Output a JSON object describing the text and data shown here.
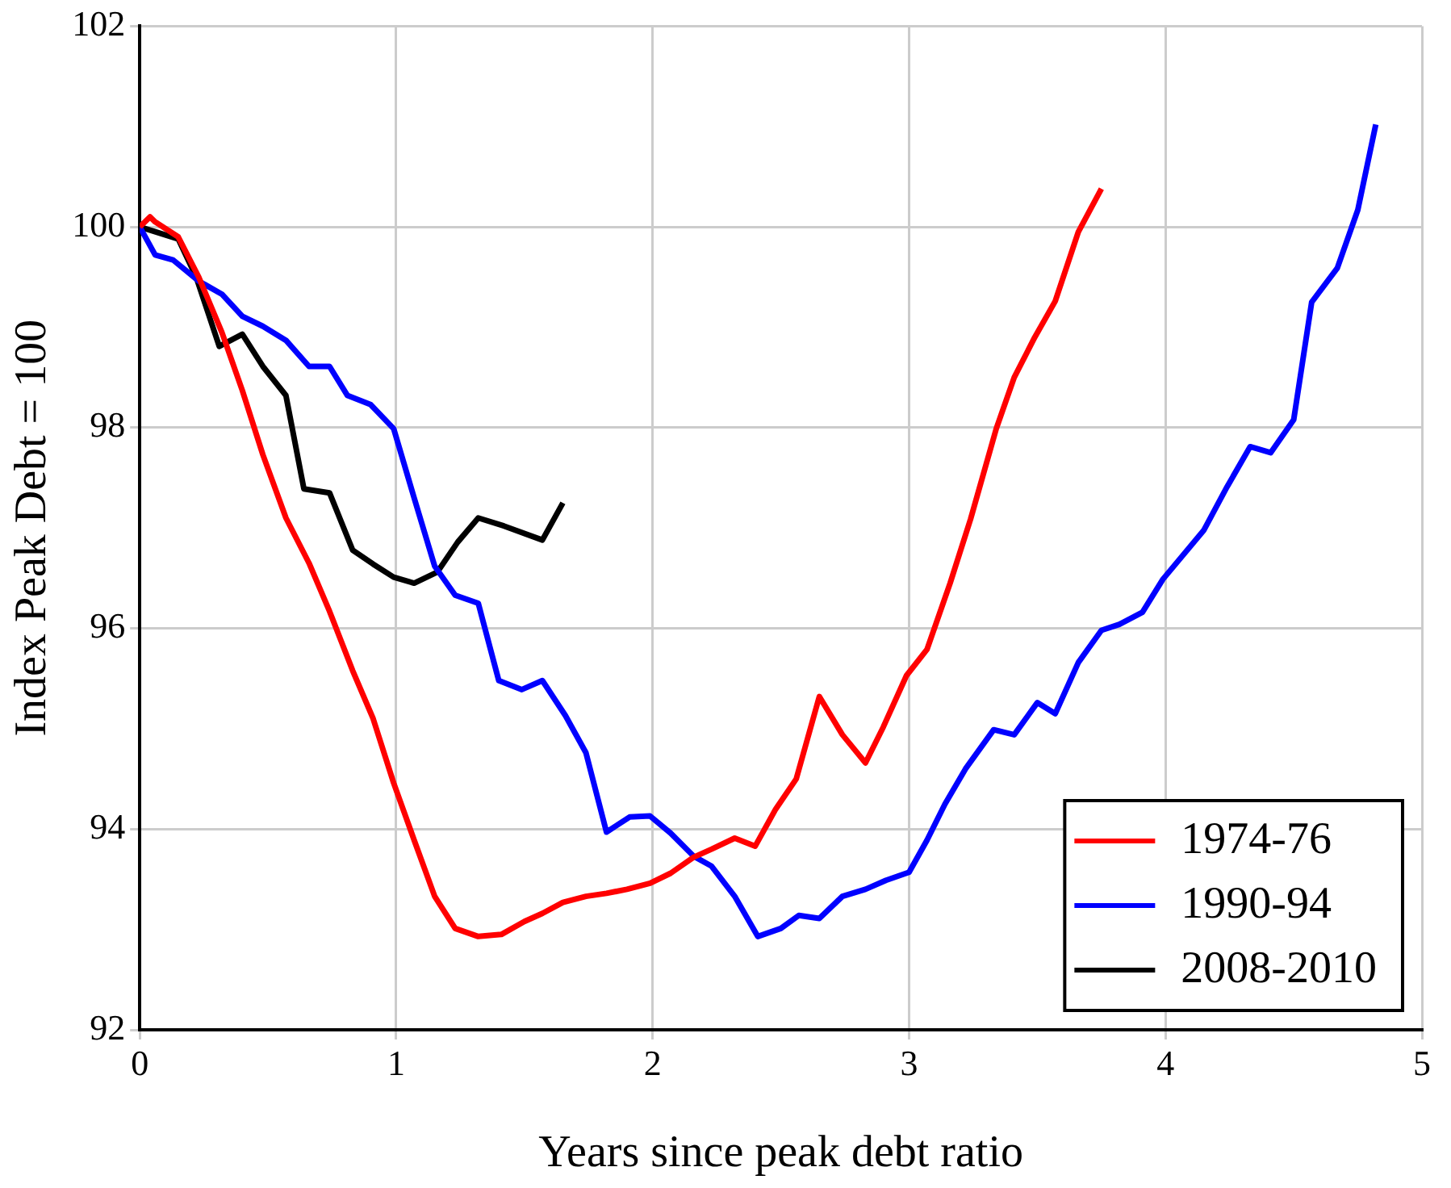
{
  "chart_data": {
    "type": "line",
    "xlabel": "Years since peak debt ratio",
    "ylabel": "Index Peak Debt = 100",
    "xlim": [
      0,
      5
    ],
    "xticks": [
      0,
      1,
      2,
      3,
      4,
      5
    ],
    "ylim": [
      92,
      102
    ],
    "yticks": [
      92,
      94,
      96,
      98,
      100,
      102
    ],
    "grid": true,
    "legend": "bottom right",
    "line_style": "solid",
    "series": [
      {
        "name": "1974-76",
        "color": "#ff0000",
        "x": [
          0,
          0.04,
          0.06,
          0.15,
          0.23,
          0.32,
          0.4,
          0.48,
          0.57,
          0.66,
          0.74,
          0.83,
          0.91,
          0.99,
          1.07,
          1.15,
          1.23,
          1.32,
          1.41,
          1.5,
          1.57,
          1.65,
          1.74,
          1.82,
          1.9,
          1.99,
          2.07,
          2.16,
          2.23,
          2.32,
          2.4,
          2.48,
          2.56,
          2.65,
          2.74,
          2.83,
          2.9,
          2.99,
          3.07,
          3.16,
          3.24,
          3.34,
          3.41,
          3.49,
          3.57,
          3.66,
          3.75
        ],
        "values": [
          100.0,
          100.1,
          100.05,
          99.9,
          99.5,
          98.95,
          98.37,
          97.73,
          97.1,
          96.65,
          96.17,
          95.58,
          95.1,
          94.46,
          93.89,
          93.33,
          93.01,
          92.93,
          92.95,
          93.08,
          93.16,
          93.27,
          93.33,
          93.36,
          93.4,
          93.46,
          93.56,
          93.72,
          93.8,
          93.91,
          93.83,
          94.2,
          94.5,
          95.32,
          94.94,
          94.66,
          95.02,
          95.53,
          95.79,
          96.45,
          97.09,
          97.99,
          98.5,
          98.9,
          99.26,
          99.95,
          100.38
        ]
      },
      {
        "name": "1990-94",
        "color": "#0000ff",
        "x": [
          0,
          0.06,
          0.13,
          0.23,
          0.32,
          0.4,
          0.48,
          0.57,
          0.66,
          0.74,
          0.81,
          0.9,
          0.99,
          1.07,
          1.15,
          1.23,
          1.32,
          1.4,
          1.49,
          1.57,
          1.66,
          1.74,
          1.82,
          1.91,
          1.99,
          2.07,
          2.16,
          2.23,
          2.32,
          2.41,
          2.5,
          2.57,
          2.65,
          2.74,
          2.83,
          2.91,
          3.0,
          3.07,
          3.14,
          3.22,
          3.33,
          3.41,
          3.5,
          3.57,
          3.66,
          3.75,
          3.82,
          3.91,
          3.99,
          4.15,
          4.24,
          4.33,
          4.41,
          4.5,
          4.57,
          4.67,
          4.75,
          4.82
        ],
        "values": [
          100.0,
          99.72,
          99.67,
          99.46,
          99.33,
          99.11,
          99.01,
          98.87,
          98.61,
          98.61,
          98.32,
          98.23,
          97.99,
          97.3,
          96.62,
          96.33,
          96.25,
          95.48,
          95.39,
          95.48,
          95.13,
          94.76,
          93.97,
          94.12,
          94.13,
          93.96,
          93.73,
          93.63,
          93.33,
          92.93,
          93.01,
          93.14,
          93.11,
          93.33,
          93.4,
          93.49,
          93.57,
          93.89,
          94.25,
          94.6,
          94.99,
          94.94,
          95.26,
          95.15,
          95.66,
          95.98,
          96.04,
          96.16,
          96.49,
          96.98,
          97.41,
          97.81,
          97.75,
          98.08,
          99.25,
          99.59,
          100.17,
          101.02
        ]
      },
      {
        "name": "2008-2010",
        "color": "#000000",
        "x": [
          0,
          0.15,
          0.22,
          0.31,
          0.4,
          0.48,
          0.57,
          0.64,
          0.74,
          0.83,
          0.91,
          0.99,
          1.07,
          1.16,
          1.24,
          1.32,
          1.42,
          1.57,
          1.65
        ],
        "values": [
          100.0,
          99.88,
          99.5,
          98.81,
          98.93,
          98.61,
          98.32,
          97.39,
          97.35,
          96.78,
          96.64,
          96.51,
          96.45,
          96.56,
          96.86,
          97.1,
          97.02,
          96.88,
          97.25
        ]
      }
    ]
  }
}
